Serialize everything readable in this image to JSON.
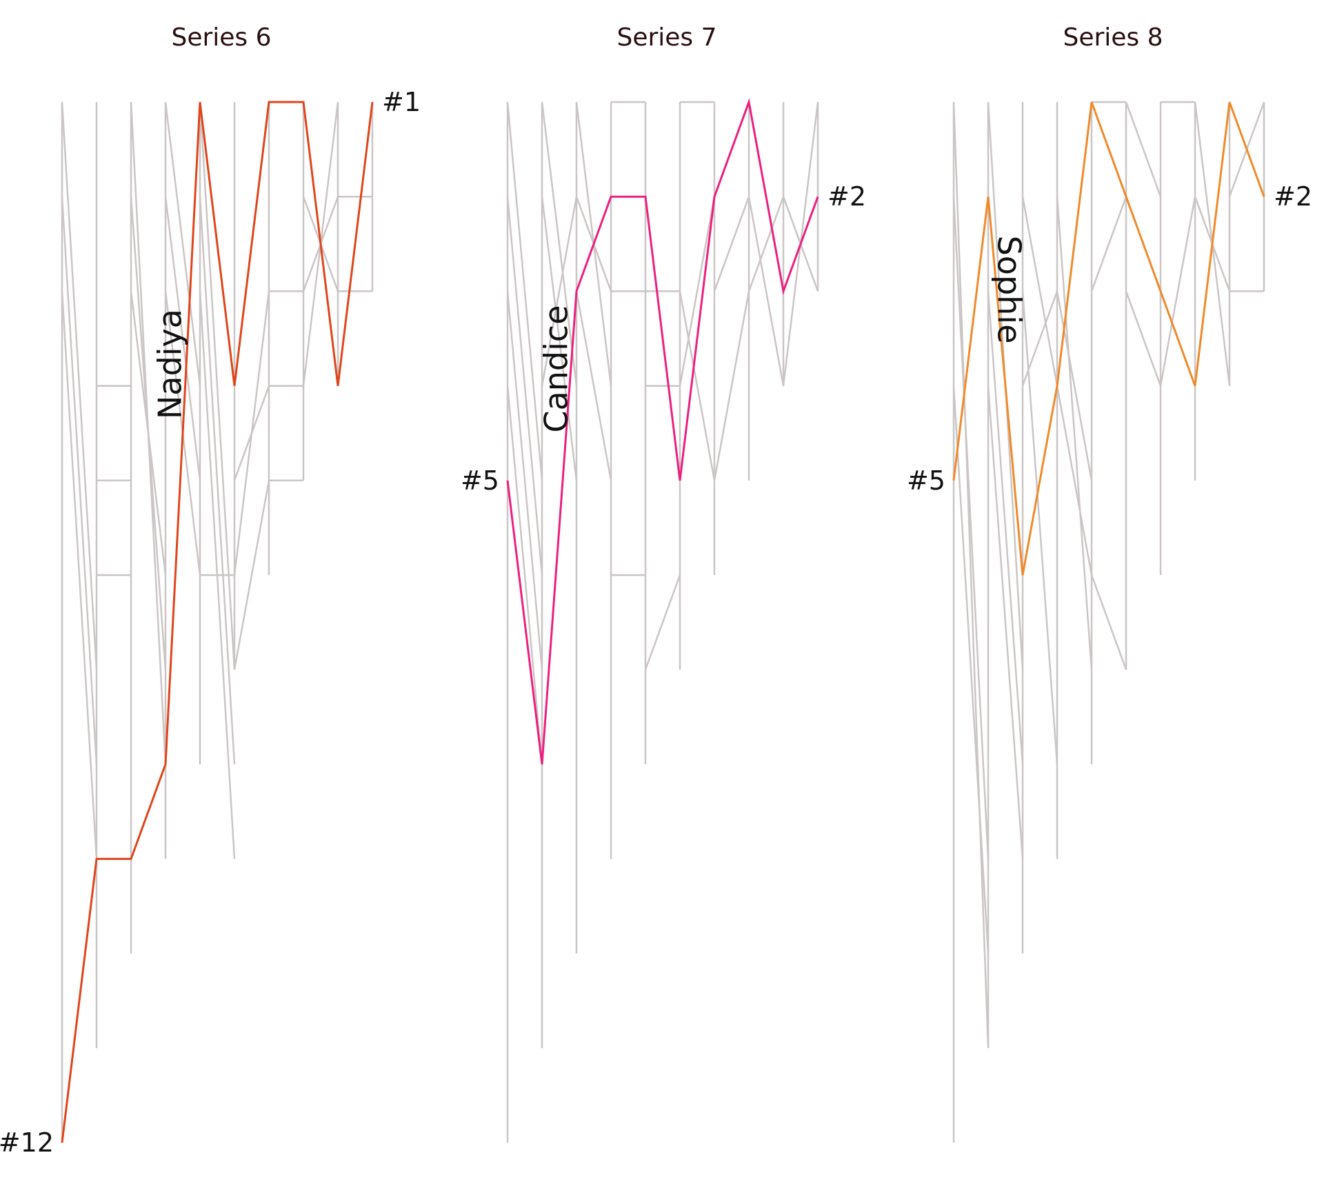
{
  "chart_data": {
    "type": "line",
    "description_free": true,
    "y_scale": "rank (1 at top, 12 at bottom)",
    "ylim": [
      1,
      12
    ],
    "colors": {
      "background_line": "#cbc5c5",
      "title": "#2a0f0f",
      "label": "#111111"
    },
    "panels": [
      {
        "title": "Series 6",
        "highlight": "Nadiya",
        "highlight_color": "#e0441b",
        "start_label": "#12",
        "end_label": "#1",
        "highlight_ranks": [
          12,
          9,
          9,
          8,
          1,
          4,
          1,
          1,
          4,
          1
        ],
        "background_segments": [
          [
            [
              1,
              1
            ],
            [
              2,
              7
            ]
          ],
          [
            [
              1,
              2
            ],
            [
              2,
              8
            ]
          ],
          [
            [
              1,
              3
            ],
            [
              2,
              9
            ]
          ],
          [
            [
              2,
              4
            ],
            [
              3,
              4
            ]
          ],
          [
            [
              2,
              5
            ],
            [
              3,
              5
            ]
          ],
          [
            [
              2,
              6
            ],
            [
              3,
              6
            ]
          ],
          [
            [
              3,
              1
            ],
            [
              4,
              8
            ]
          ],
          [
            [
              3,
              2
            ],
            [
              4,
              7
            ]
          ],
          [
            [
              3,
              3
            ],
            [
              4,
              6
            ]
          ],
          [
            [
              4,
              1
            ],
            [
              5,
              4
            ]
          ],
          [
            [
              4,
              2
            ],
            [
              5,
              5
            ]
          ],
          [
            [
              4,
              3
            ],
            [
              5,
              6
            ]
          ],
          [
            [
              5,
              6
            ],
            [
              6,
              6
            ]
          ],
          [
            [
              5,
              1
            ],
            [
              6,
              7
            ]
          ],
          [
            [
              5,
              2
            ],
            [
              6,
              8
            ]
          ],
          [
            [
              5,
              3
            ],
            [
              6,
              9
            ]
          ],
          [
            [
              6,
              5
            ],
            [
              7,
              4
            ]
          ],
          [
            [
              6,
              6
            ],
            [
              7,
              3
            ]
          ],
          [
            [
              6,
              7
            ],
            [
              7,
              5
            ]
          ],
          [
            [
              7,
              3
            ],
            [
              8,
              3
            ]
          ],
          [
            [
              7,
              4
            ],
            [
              8,
              4
            ]
          ],
          [
            [
              7,
              5
            ],
            [
              8,
              5
            ]
          ],
          [
            [
              8,
              4
            ],
            [
              9,
              1
            ]
          ],
          [
            [
              8,
              3
            ],
            [
              9,
              2
            ]
          ],
          [
            [
              8,
              2
            ],
            [
              9,
              3
            ]
          ],
          [
            [
              9,
              2
            ],
            [
              10,
              2
            ]
          ],
          [
            [
              9,
              3
            ],
            [
              10,
              3
            ]
          ]
        ],
        "column_spans": [
          [
            1,
            12
          ],
          [
            1,
            11
          ],
          [
            1,
            10
          ],
          [
            1,
            9
          ],
          [
            1,
            8
          ],
          [
            1,
            7
          ],
          [
            1,
            6
          ],
          [
            1,
            5
          ],
          [
            1,
            4
          ],
          [
            1,
            3
          ]
        ]
      },
      {
        "title": "Series 7",
        "highlight": "Candice",
        "highlight_color": "#ec1f7e",
        "start_label": "#5",
        "end_label": "#2",
        "highlight_ranks": [
          5,
          8,
          3,
          2,
          2,
          5,
          2,
          1,
          3,
          2
        ],
        "background_segments": [
          [
            [
              1,
              1
            ],
            [
              2,
              5
            ]
          ],
          [
            [
              1,
              2
            ],
            [
              2,
              6
            ]
          ],
          [
            [
              1,
              3
            ],
            [
              2,
              7
            ]
          ],
          [
            [
              1,
              4
            ],
            [
              2,
              8
            ]
          ],
          [
            [
              2,
              1
            ],
            [
              3,
              4
            ]
          ],
          [
            [
              2,
              2
            ],
            [
              3,
              5
            ]
          ],
          [
            [
              2,
              4
            ],
            [
              3,
              2
            ]
          ],
          [
            [
              3,
              1
            ],
            [
              4,
              4
            ]
          ],
          [
            [
              3,
              2
            ],
            [
              4,
              3
            ]
          ],
          [
            [
              3,
              3
            ],
            [
              4,
              5
            ]
          ],
          [
            [
              4,
              6
            ],
            [
              5,
              6
            ]
          ],
          [
            [
              4,
              1
            ],
            [
              5,
              1
            ]
          ],
          [
            [
              4,
              3
            ],
            [
              5,
              3
            ]
          ],
          [
            [
              5,
              7
            ],
            [
              6,
              6
            ]
          ],
          [
            [
              5,
              4
            ],
            [
              6,
              4
            ]
          ],
          [
            [
              5,
              3
            ],
            [
              6,
              3
            ]
          ],
          [
            [
              6,
              1
            ],
            [
              7,
              1
            ]
          ],
          [
            [
              6,
              4
            ],
            [
              7,
              2
            ]
          ],
          [
            [
              6,
              3
            ],
            [
              7,
              5
            ]
          ],
          [
            [
              7,
              3
            ],
            [
              8,
              2
            ]
          ],
          [
            [
              7,
              5
            ],
            [
              8,
              3
            ]
          ],
          [
            [
              8,
              3
            ],
            [
              9,
              2
            ]
          ],
          [
            [
              8,
              2
            ],
            [
              9,
              4
            ]
          ],
          [
            [
              9,
              4
            ],
            [
              10,
              1
            ]
          ],
          [
            [
              9,
              2
            ],
            [
              10,
              3
            ]
          ]
        ],
        "column_spans": [
          [
            1,
            12
          ],
          [
            1,
            11
          ],
          [
            1,
            10
          ],
          [
            1,
            9
          ],
          [
            1,
            8
          ],
          [
            1,
            7
          ],
          [
            1,
            6
          ],
          [
            1,
            5
          ],
          [
            1,
            4
          ],
          [
            1,
            3
          ]
        ]
      },
      {
        "title": "Series 8",
        "highlight": "Sophie",
        "highlight_color": "#f0892a",
        "start_label": "#5",
        "end_label": "#2",
        "highlight_ranks": [
          5,
          2,
          6,
          4,
          1,
          2,
          3,
          4,
          1,
          2
        ],
        "background_segments": [
          [
            [
              1,
              1
            ],
            [
              2,
              11
            ]
          ],
          [
            [
              1,
              2
            ],
            [
              2,
              9
            ]
          ],
          [
            [
              1,
              4
            ],
            [
              2,
              10
            ]
          ],
          [
            [
              2,
              1
            ],
            [
              3,
              7
            ]
          ],
          [
            [
              2,
              3
            ],
            [
              3,
              8
            ]
          ],
          [
            [
              2,
              4
            ],
            [
              3,
              9
            ]
          ],
          [
            [
              3,
              2
            ],
            [
              4,
              4
            ]
          ],
          [
            [
              3,
              3
            ],
            [
              4,
              8
            ]
          ],
          [
            [
              3,
              4
            ],
            [
              4,
              3
            ]
          ],
          [
            [
              4,
              2
            ],
            [
              5,
              7
            ]
          ],
          [
            [
              4,
              4
            ],
            [
              5,
              6
            ]
          ],
          [
            [
              4,
              3
            ],
            [
              5,
              5
            ]
          ],
          [
            [
              5,
              6
            ],
            [
              6,
              7
            ]
          ],
          [
            [
              5,
              1
            ],
            [
              6,
              1
            ]
          ],
          [
            [
              5,
              3
            ],
            [
              6,
              2
            ]
          ],
          [
            [
              6,
              3
            ],
            [
              7,
              4
            ]
          ],
          [
            [
              6,
              1
            ],
            [
              7,
              2
            ]
          ],
          [
            [
              6,
              2
            ],
            [
              7,
              3
            ]
          ],
          [
            [
              7,
              4
            ],
            [
              8,
              2
            ]
          ],
          [
            [
              7,
              1
            ],
            [
              8,
              1
            ]
          ],
          [
            [
              8,
              1
            ],
            [
              9,
              4
            ]
          ],
          [
            [
              8,
              2
            ],
            [
              9,
              3
            ]
          ],
          [
            [
              9,
              3
            ],
            [
              10,
              3
            ]
          ],
          [
            [
              9,
              2
            ],
            [
              10,
              1
            ]
          ]
        ],
        "column_spans": [
          [
            1,
            12
          ],
          [
            1,
            11
          ],
          [
            1,
            10
          ],
          [
            1,
            9
          ],
          [
            1,
            8
          ],
          [
            1,
            7
          ],
          [
            1,
            6
          ],
          [
            1,
            5
          ],
          [
            1,
            4
          ],
          [
            1,
            3
          ]
        ]
      }
    ]
  }
}
